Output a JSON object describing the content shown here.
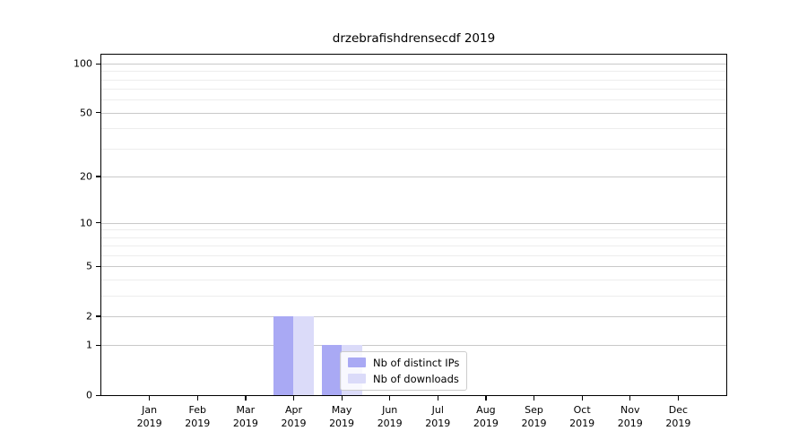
{
  "title": "drzebrafishdrensecdf 2019",
  "chart_data": {
    "type": "bar",
    "title": "drzebrafishdrensecdf 2019",
    "categories": [
      "Jan",
      "Feb",
      "Mar",
      "Apr",
      "May",
      "Jun",
      "Jul",
      "Aug",
      "Sep",
      "Oct",
      "Nov",
      "Dec"
    ],
    "tick_year": "2019",
    "series": [
      {
        "name": "Nb of distinct IPs",
        "color": "#a9a9f4",
        "values": [
          0,
          0,
          0,
          2,
          1,
          0,
          0,
          0,
          0,
          0,
          0,
          0
        ]
      },
      {
        "name": "Nb of downloads",
        "color": "#dbdbf9",
        "values": [
          0,
          0,
          0,
          2,
          1,
          0,
          0,
          0,
          0,
          0,
          0,
          0
        ]
      }
    ],
    "yscale": "log1p",
    "ylim": [
      0,
      100
    ],
    "y_tick_values": [
      0,
      1,
      2,
      5,
      10,
      20,
      50,
      100
    ],
    "major_grid_values": [
      1,
      2,
      5,
      10,
      20,
      50,
      100
    ],
    "minor_grid_values": [
      3,
      4,
      6,
      7,
      8,
      9,
      30,
      40,
      60,
      70,
      80,
      90
    ],
    "grid": "horizontal",
    "legend_position": "inside lower center-right",
    "colors": {
      "major_grid": "#c9c9c9",
      "minor_grid": "#ededed",
      "spine": "#000000",
      "background": "#ffffff"
    }
  }
}
